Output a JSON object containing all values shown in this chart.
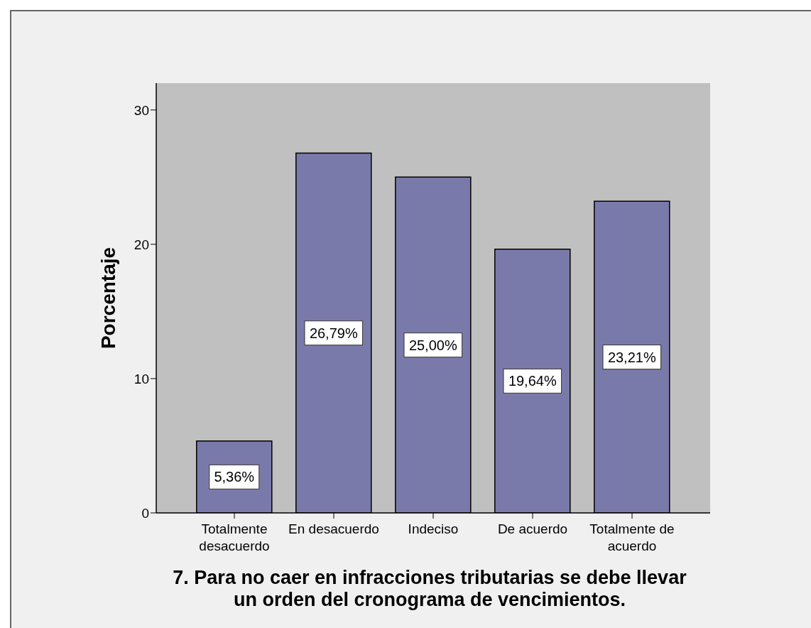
{
  "chart_data": {
    "type": "bar",
    "categories": [
      "Totalmente desacuerdo",
      "En desacuerdo",
      "Indeciso",
      "De acuerdo",
      "Totalmente de acuerdo"
    ],
    "values": [
      5.36,
      26.79,
      25.0,
      19.64,
      23.21
    ],
    "color": "#7a7aaa",
    "value_labels": [
      "5,36%",
      "26,79%",
      "25,00%",
      "19,64%",
      "23,21%"
    ],
    "ylim": [
      0,
      32
    ],
    "yticks": [
      0,
      10,
      20,
      30
    ],
    "ylabel": "Porcentaje",
    "xlabel": "7. Para no caer en infracciones tributarias se debe llevar un orden del cronograma de vencimientos."
  }
}
